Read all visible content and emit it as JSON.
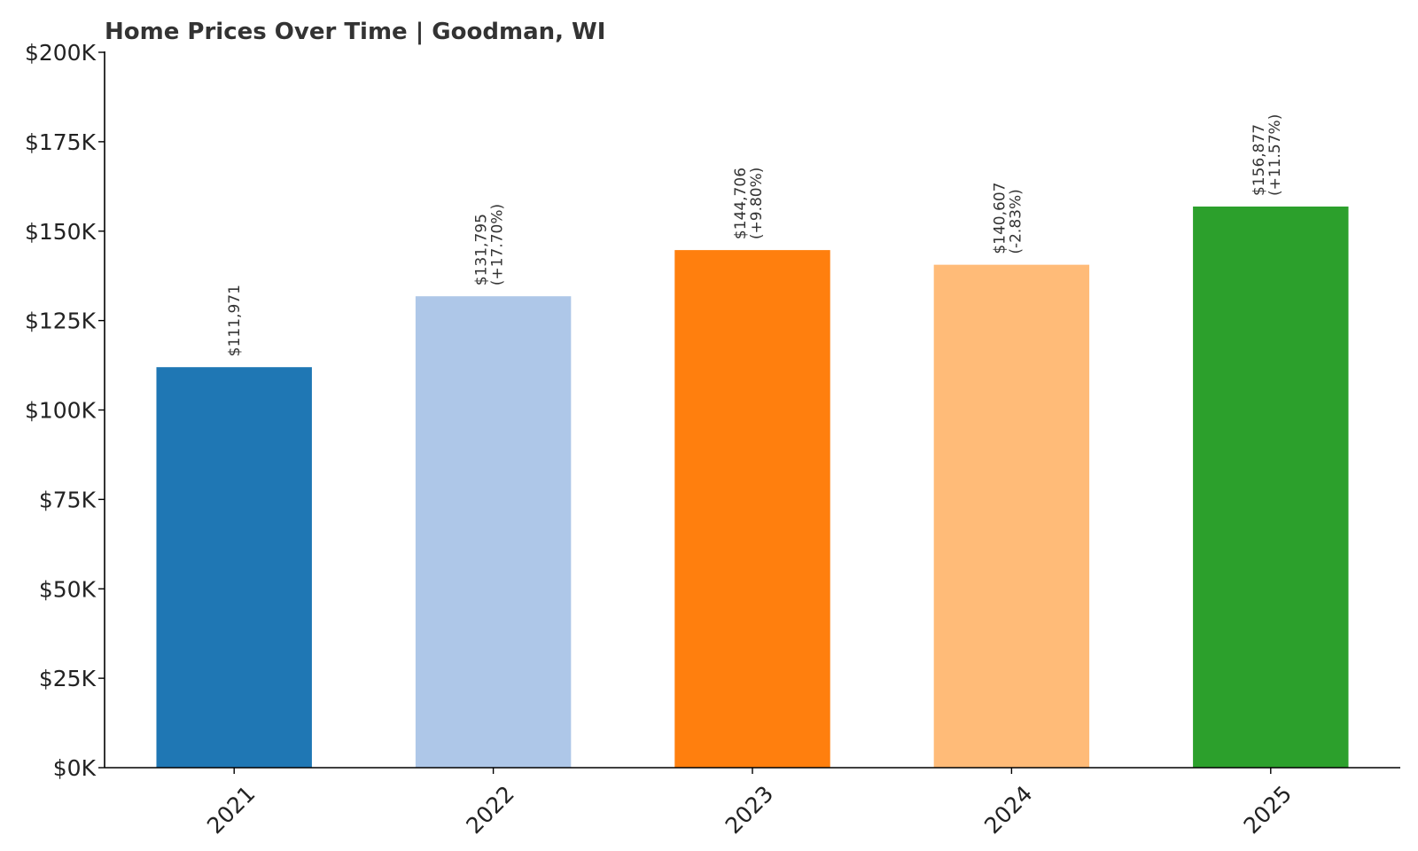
{
  "chart_data": {
    "type": "bar",
    "title": "Home Prices Over Time | Goodman, WI",
    "xlabel": "",
    "ylabel": "",
    "categories": [
      "2021",
      "2022",
      "2023",
      "2024",
      "2025"
    ],
    "values": [
      111971,
      131795,
      144706,
      140607,
      156877
    ],
    "value_labels": [
      "$111,971",
      "$131,795",
      "$144,706",
      "$140,607",
      "$156,877"
    ],
    "change_labels": [
      "",
      "(+17.70%)",
      "(+9.80%)",
      "(-2.83%)",
      "(+11.57%)"
    ],
    "colors": [
      "#1f77b4",
      "#aec7e8",
      "#ff7f0e",
      "#ffbb78",
      "#2ca02c"
    ],
    "ylim": [
      0,
      200000
    ],
    "yticks": [
      0,
      25000,
      50000,
      75000,
      100000,
      125000,
      150000,
      175000,
      200000
    ],
    "ytick_labels": [
      "$0K",
      "$25K",
      "$50K",
      "$75K",
      "$100K",
      "$125K",
      "$150K",
      "$175K",
      "$200K"
    ],
    "grid": false,
    "legend": "none"
  }
}
